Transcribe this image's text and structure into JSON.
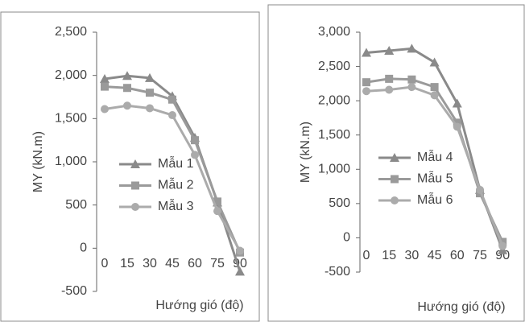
{
  "chart_data": [
    {
      "type": "line",
      "y_label": "MY (kN.m)",
      "x_label": "Hướng gió (độ)",
      "categories": [
        "0",
        "15",
        "30",
        "45",
        "60",
        "75",
        "90"
      ],
      "ylim": [
        -500,
        2500
      ],
      "yticks": [
        {
          "value": 2500,
          "label": "2,500"
        },
        {
          "value": 2000,
          "label": "2,000"
        },
        {
          "value": 1500,
          "label": "1,500"
        },
        {
          "value": 1000,
          "label": "1,000"
        },
        500,
        0,
        -500
      ],
      "series": [
        {
          "name": "Mẫu 1",
          "color": "#8a8a8a",
          "marker": "triangle",
          "values": [
            1960,
            1995,
            1970,
            1760,
            1280,
            530,
            -270
          ]
        },
        {
          "name": "Mẫu 2",
          "color": "#9a9a9a",
          "marker": "square",
          "values": [
            1870,
            1855,
            1800,
            1720,
            1250,
            540,
            -50
          ]
        },
        {
          "name": "Mẫu 3",
          "color": "#ababab",
          "marker": "circle",
          "values": [
            1610,
            1650,
            1620,
            1540,
            1080,
            430,
            -30
          ]
        }
      ]
    },
    {
      "type": "line",
      "y_label": "MY (kN.m)",
      "x_label": "Hướng gió (độ)",
      "categories": [
        "0",
        "15",
        "30",
        "45",
        "60",
        "75",
        "90"
      ],
      "ylim": [
        -500,
        3000
      ],
      "yticks": [
        {
          "value": 3000,
          "label": "3,000"
        },
        {
          "value": 2500,
          "label": "2,500"
        },
        {
          "value": 2000,
          "label": "2,000"
        },
        {
          "value": 1500,
          "label": "1,500"
        },
        {
          "value": 1000,
          "label": "1,000"
        },
        500,
        0,
        -500
      ],
      "series": [
        {
          "name": "Mẫu 4",
          "color": "#8a8a8a",
          "marker": "triangle",
          "values": [
            2700,
            2730,
            2760,
            2560,
            1960,
            700,
            -180
          ]
        },
        {
          "name": "Mẫu 5",
          "color": "#9a9a9a",
          "marker": "square",
          "values": [
            2270,
            2320,
            2310,
            2200,
            1680,
            650,
            -60
          ]
        },
        {
          "name": "Mẫu 6",
          "color": "#ababab",
          "marker": "circle",
          "values": [
            2140,
            2160,
            2200,
            2080,
            1620,
            700,
            -120
          ]
        }
      ]
    }
  ]
}
